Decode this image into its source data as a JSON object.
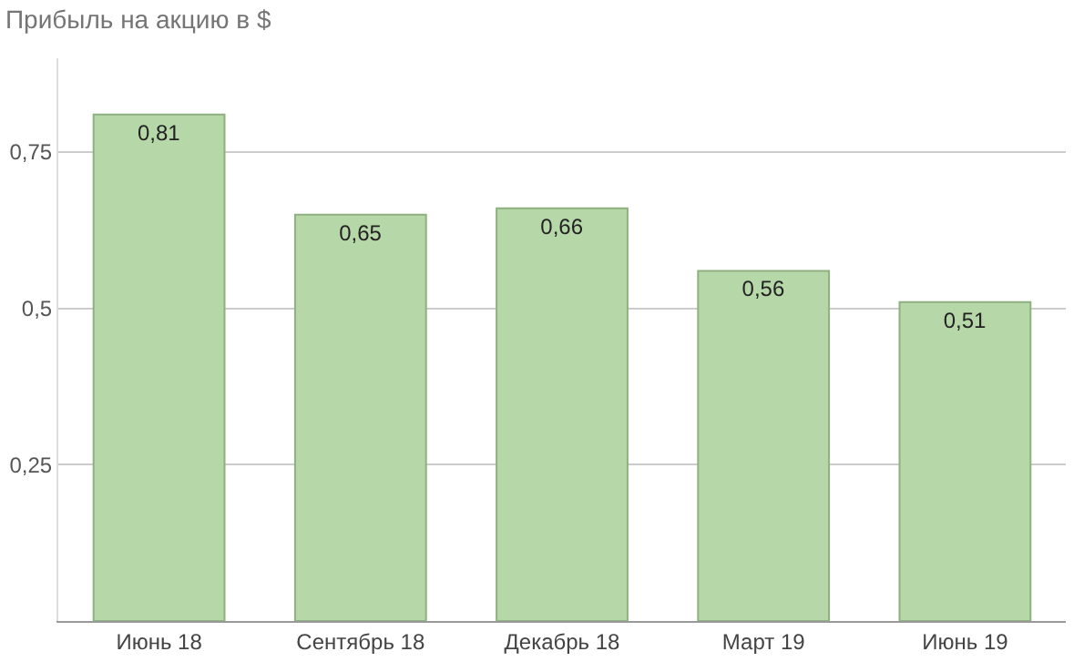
{
  "chart_data": {
    "type": "bar",
    "title": "Прибыль на акцию в $",
    "categories": [
      "Июнь 18",
      "Сентябрь 18",
      "Декабрь 18",
      "Март 19",
      "Июнь 19"
    ],
    "values": [
      0.81,
      0.65,
      0.66,
      0.56,
      0.51
    ],
    "value_labels": [
      "0,81",
      "0,65",
      "0,66",
      "0,56",
      "0,51"
    ],
    "color": "#b6d7a8",
    "ylim": [
      0,
      0.9
    ],
    "yticks": [
      {
        "value": 0.25,
        "label": "0,25"
      },
      {
        "value": 0.5,
        "label": "0,5"
      },
      {
        "value": 0.75,
        "label": "0,75"
      }
    ],
    "grid": "y"
  }
}
